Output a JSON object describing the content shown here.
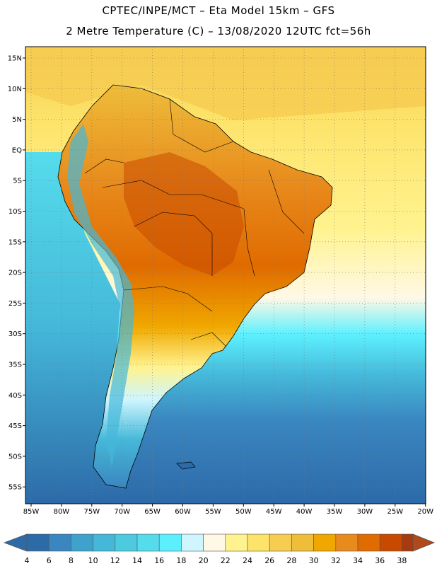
{
  "header": {
    "title_line1": "CPTEC/INPE/MCT –  Eta Model 15km – GFS",
    "title_line2": "2 Metre Temperature (C) – 13/08/2020 12UTC fct=56h"
  },
  "map": {
    "lat_labels": [
      "15N",
      "10N",
      "5N",
      "EQ",
      "5S",
      "10S",
      "15S",
      "20S",
      "25S",
      "30S",
      "35S",
      "40S",
      "45S",
      "50S",
      "55S"
    ],
    "lon_labels": [
      "85W",
      "80W",
      "75W",
      "70W",
      "65W",
      "60W",
      "55W",
      "50W",
      "45W",
      "40W",
      "35W",
      "30W",
      "25W",
      "20W"
    ],
    "field": "2 Metre Temperature",
    "units": "C"
  },
  "colorbar": {
    "labels": [
      "4",
      "6",
      "8",
      "10",
      "12",
      "14",
      "16",
      "18",
      "20",
      "22",
      "24",
      "26",
      "28",
      "30",
      "32",
      "34",
      "36",
      "38"
    ],
    "colors": [
      "#2c6aa8",
      "#3a86c0",
      "#3ea2cd",
      "#45b8d9",
      "#4ccbe0",
      "#55dcec",
      "#5cf0ff",
      "#cff6ff",
      "#fff8e6",
      "#fff38f",
      "#fde36a",
      "#f6cc51",
      "#eebd3a",
      "#f0a800",
      "#e88a1c",
      "#e06b00",
      "#c84a00",
      "#a63a10",
      "#b04a1a"
    ]
  }
}
